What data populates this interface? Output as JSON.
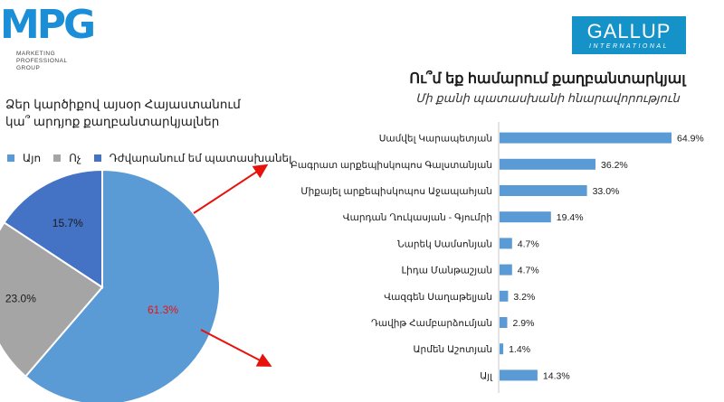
{
  "logo_left": {
    "word": "MPG",
    "subtitle": [
      "MARKETING",
      "PROFESSIONAL",
      "GROUP"
    ]
  },
  "logo_right": {
    "word": "GALLUP",
    "sub": "INTERNATIONAL"
  },
  "colors": {
    "blue": "#5b9bd5",
    "gray": "#a5a5a5",
    "darkblue": "#4472c4",
    "arrow": "#e8120c",
    "highlight": "#e8120c"
  },
  "chart_data": [
    {
      "type": "pie",
      "title": "Ձեր կարծիքով այսօր Հայաստանում կա՞ արդյոք քաղբանտարկյալներ",
      "labels": [
        "Այո",
        "Ոչ",
        "Դժվարանում եմ պատասխանել"
      ],
      "values": [
        61.3,
        23.0,
        15.7
      ],
      "value_labels": [
        "61.3%",
        "23.0%",
        "15.7%"
      ],
      "colors": [
        "#5b9bd5",
        "#a5a5a5",
        "#4472c4"
      ],
      "legend": "top"
    },
    {
      "type": "bar",
      "orientation": "horizontal",
      "title": "Ու՞մ եք համարում քաղբանտարկյալ",
      "subtitle": "Մի քանի պատասխանի հնարավորություն",
      "categories": [
        "Սամվել Կարապետյան",
        "Բագրատ արքեպիսկոպոս Գալստանյան",
        "Միքայել արքեպիսկոպոս Աջապահյան",
        "Վարդան Ղուկասյան - Գյումրի",
        "Նարեկ Սամսոնյան",
        "Լիդա Մանթաշյան",
        "Վազգեն Սաղաթելյան",
        "Դավիթ Համբարձումյան",
        "Արմեն Աշոտյան",
        "Այլ"
      ],
      "values": [
        64.9,
        36.2,
        33.0,
        19.4,
        4.7,
        4.7,
        3.2,
        2.9,
        1.4,
        14.3
      ],
      "value_labels": [
        "64.9%",
        "36.2%",
        "33.0%",
        "19.4%",
        "4.7%",
        "4.7%",
        "3.2%",
        "2.9%",
        "1.4%",
        "14.3%"
      ],
      "color": "#5b9bd5",
      "xlim": [
        0,
        70
      ]
    }
  ]
}
